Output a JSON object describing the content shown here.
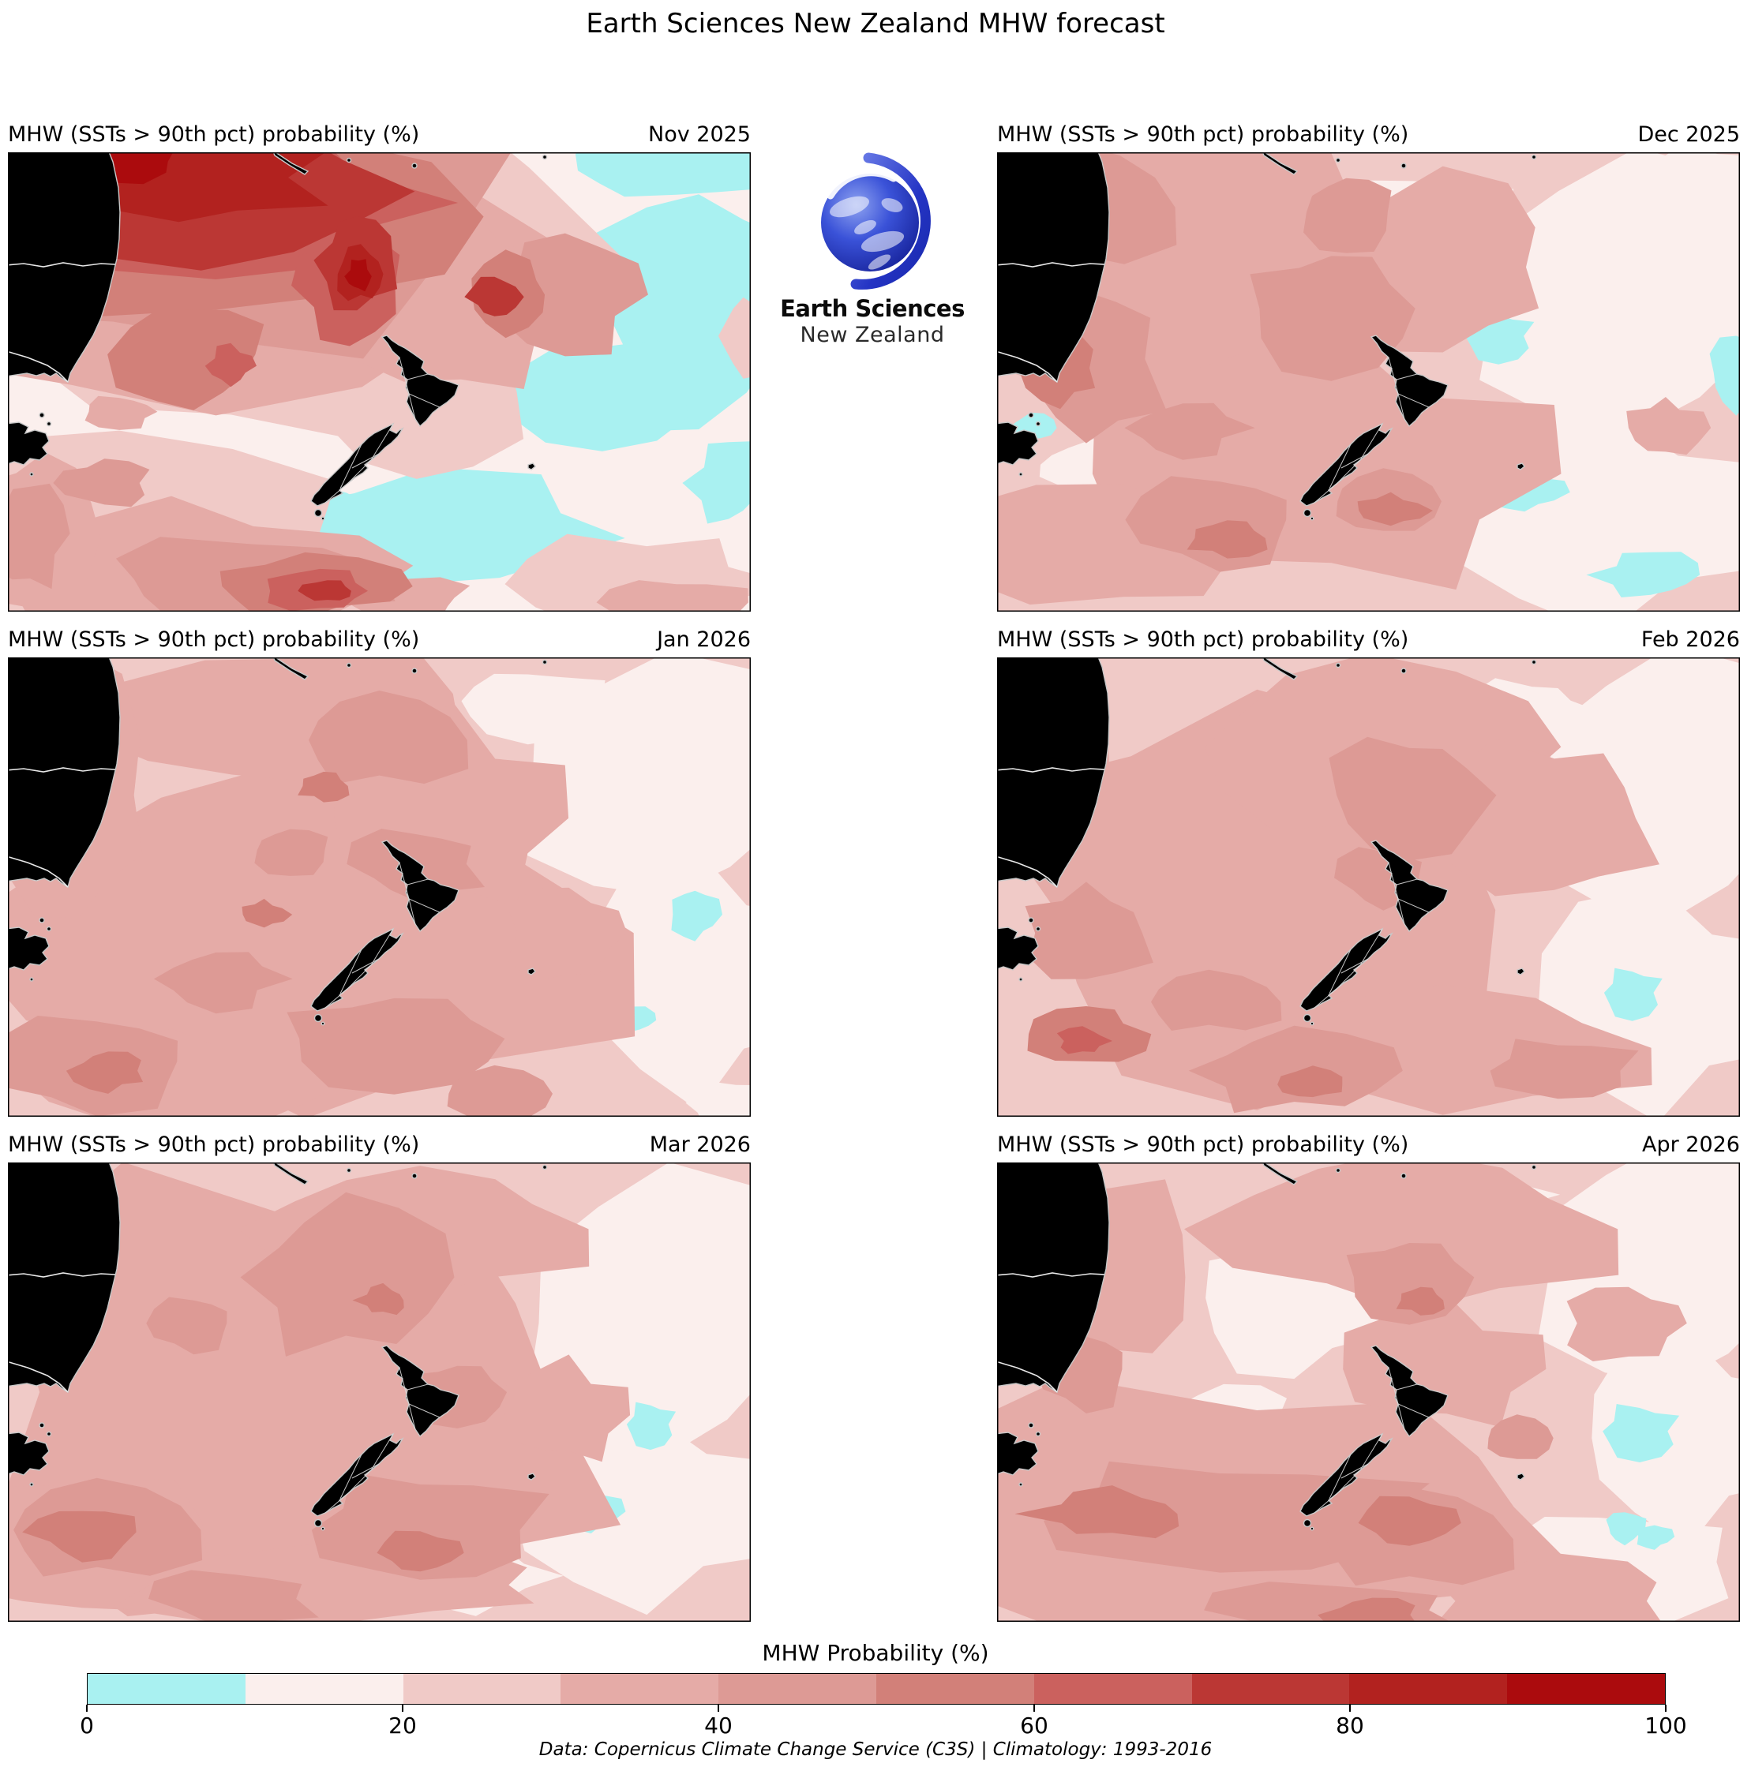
{
  "figure": {
    "title": "Earth Sciences New Zealand MHW forecast",
    "footer": "Data: Copernicus Climate Change Service (C3S) | Climatology: 1993-2016"
  },
  "logo": {
    "icon": "earth-globe-icon",
    "line1": "Earth Sciences",
    "line2": "New Zealand"
  },
  "panels": [
    {
      "title": "MHW (SSTs > 90th pct) probability (%)",
      "date": "Nov 2025"
    },
    {
      "title": "MHW (SSTs > 90th pct) probability (%)",
      "date": "Dec 2025"
    },
    {
      "title": "MHW (SSTs > 90th pct) probability (%)",
      "date": "Jan 2026"
    },
    {
      "title": "MHW (SSTs > 90th pct) probability (%)",
      "date": "Feb 2026"
    },
    {
      "title": "MHW (SSTs > 90th pct) probability (%)",
      "date": "Mar 2026"
    },
    {
      "title": "MHW (SSTs > 90th pct) probability (%)",
      "date": "Apr 2026"
    }
  ],
  "colorbar": {
    "title": "MHW Probability (%)",
    "min": 0,
    "max": 100,
    "ticks": [
      "0",
      "20",
      "40",
      "60",
      "80",
      "100"
    ],
    "segment_colors": [
      "#a9f1f1",
      "#fbefed",
      "#f0cac7",
      "#e5aba7",
      "#dd9a95",
      "#d28079",
      "#cb615e",
      "#bb3734",
      "#b2221f",
      "#ab0b0d"
    ],
    "land_color": "#000000",
    "coast_outline_color": "#c8c8c8"
  },
  "chart_data": {
    "type": "heatmap",
    "title": "Earth Sciences New Zealand MHW forecast",
    "panel_variable": "MHW (SSTs > 90th pct) probability (%)",
    "region": "Tasman Sea / New Zealand (southeast Australia at left, NZ at centre)",
    "colorbar": {
      "label": "MHW Probability (%)",
      "range": [
        0,
        100
      ],
      "levels": [
        0,
        10,
        20,
        30,
        40,
        50,
        60,
        70,
        80,
        90,
        100
      ],
      "tick_labels": [
        0,
        20,
        40,
        60,
        80,
        100
      ],
      "colors": [
        "#a9f1f1",
        "#fbefed",
        "#f0cac7",
        "#e5aba7",
        "#dd9a95",
        "#d28079",
        "#cb615e",
        "#bb3734",
        "#b2221f",
        "#ab0b0d"
      ],
      "legend_note": "cyan = <10% probability; deepening reds = higher probability"
    },
    "panels": [
      {
        "label": "Nov 2025",
        "summary": "Very high probability (70-100%) over the northern Tasman Sea NW of New Zealand with dark-red cores; <10% (cyan) east and southeast of NZ; secondary 50-90% band along the far south/bottom-left."
      },
      {
        "label": "Dec 2025",
        "summary": "Mostly 20-50% across the Tasman Sea west of NZ; 10-20% east of NZ with scattered <10% cyan patches."
      },
      {
        "label": "Jan 2026",
        "summary": "Broad 20-40% west and south of NZ; 10-20% to the east; small 40-60% maximum in the far southwest."
      },
      {
        "label": "Feb 2026",
        "summary": "20-40% field west of NZ, pale 10-20% east; 40-60% patch in the southwest; tiny <10% spot east of NZ."
      },
      {
        "label": "Mar 2026",
        "summary": "20-40% over most of the Tasman Sea; 40-60% patch in the southwest; 10-20% east of NZ with small <10% spots."
      },
      {
        "label": "Apr 2026",
        "summary": "20-40% with a 40-60% band from the southwest through south of NZ; 10-20% to the east/northeast; small <10% patch east of NZ."
      }
    ],
    "source_note": "Data: Copernicus Climate Change Service (C3S) | Climatology: 1993-2016"
  }
}
